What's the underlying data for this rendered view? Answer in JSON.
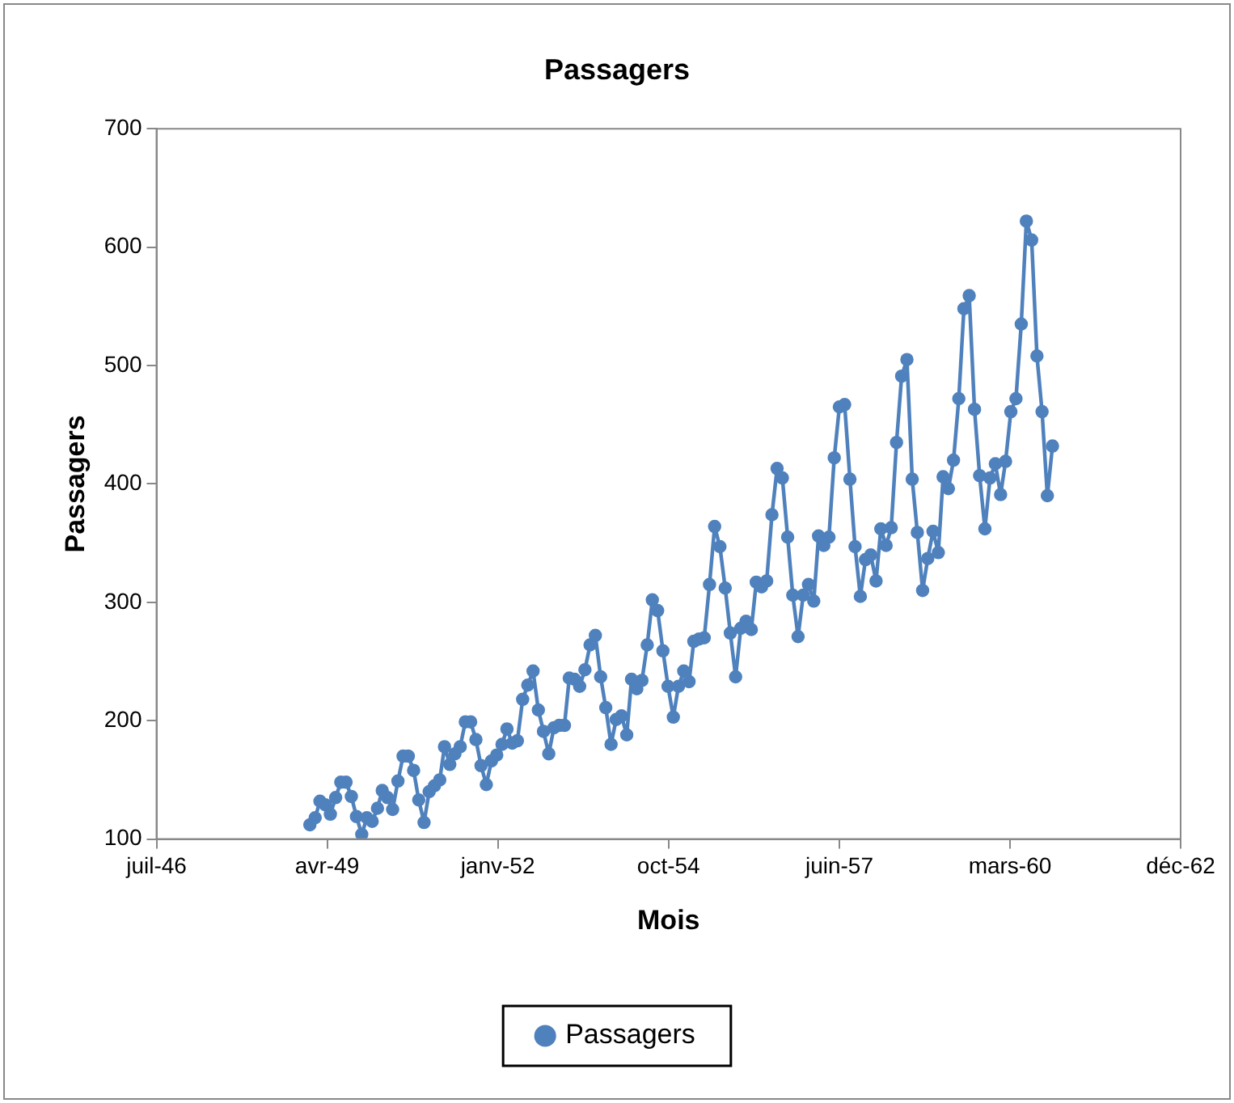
{
  "chart_data": {
    "type": "line",
    "title": "Passagers",
    "xlabel": "Mois",
    "ylabel": "Passagers",
    "x": [
      "1949-01",
      "1949-02",
      "1949-03",
      "1949-04",
      "1949-05",
      "1949-06",
      "1949-07",
      "1949-08",
      "1949-09",
      "1949-10",
      "1949-11",
      "1949-12",
      "1950-01",
      "1950-02",
      "1950-03",
      "1950-04",
      "1950-05",
      "1950-06",
      "1950-07",
      "1950-08",
      "1950-09",
      "1950-10",
      "1950-11",
      "1950-12",
      "1951-01",
      "1951-02",
      "1951-03",
      "1951-04",
      "1951-05",
      "1951-06",
      "1951-07",
      "1951-08",
      "1951-09",
      "1951-10",
      "1951-11",
      "1951-12",
      "1952-01",
      "1952-02",
      "1952-03",
      "1952-04",
      "1952-05",
      "1952-06",
      "1952-07",
      "1952-08",
      "1952-09",
      "1952-10",
      "1952-11",
      "1952-12",
      "1953-01",
      "1953-02",
      "1953-03",
      "1953-04",
      "1953-05",
      "1953-06",
      "1953-07",
      "1953-08",
      "1953-09",
      "1953-10",
      "1953-11",
      "1953-12",
      "1954-01",
      "1954-02",
      "1954-03",
      "1954-04",
      "1954-05",
      "1954-06",
      "1954-07",
      "1954-08",
      "1954-09",
      "1954-10",
      "1954-11",
      "1954-12",
      "1955-01",
      "1955-02",
      "1955-03",
      "1955-04",
      "1955-05",
      "1955-06",
      "1955-07",
      "1955-08",
      "1955-09",
      "1955-10",
      "1955-11",
      "1955-12",
      "1956-01",
      "1956-02",
      "1956-03",
      "1956-04",
      "1956-05",
      "1956-06",
      "1956-07",
      "1956-08",
      "1956-09",
      "1956-10",
      "1956-11",
      "1956-12",
      "1957-01",
      "1957-02",
      "1957-03",
      "1957-04",
      "1957-05",
      "1957-06",
      "1957-07",
      "1957-08",
      "1957-09",
      "1957-10",
      "1957-11",
      "1957-12",
      "1958-01",
      "1958-02",
      "1958-03",
      "1958-04",
      "1958-05",
      "1958-06",
      "1958-07",
      "1958-08",
      "1958-09",
      "1958-10",
      "1958-11",
      "1958-12",
      "1959-01",
      "1959-02",
      "1959-03",
      "1959-04",
      "1959-05",
      "1959-06",
      "1959-07",
      "1959-08",
      "1959-09",
      "1959-10",
      "1959-11",
      "1959-12",
      "1960-01",
      "1960-02",
      "1960-03",
      "1960-04",
      "1960-05",
      "1960-06",
      "1960-07",
      "1960-08",
      "1960-09",
      "1960-10",
      "1960-11",
      "1960-12"
    ],
    "series": [
      {
        "name": "Passagers",
        "color": "#4f81bd",
        "values": [
          112,
          118,
          132,
          129,
          121,
          135,
          148,
          148,
          136,
          119,
          104,
          118,
          115,
          126,
          141,
          135,
          125,
          149,
          170,
          170,
          158,
          133,
          114,
          140,
          145,
          150,
          178,
          163,
          172,
          178,
          199,
          199,
          184,
          162,
          146,
          166,
          171,
          180,
          193,
          181,
          183,
          218,
          230,
          242,
          209,
          191,
          172,
          194,
          196,
          196,
          236,
          235,
          229,
          243,
          264,
          272,
          237,
          211,
          180,
          201,
          204,
          188,
          235,
          227,
          234,
          264,
          302,
          293,
          259,
          229,
          203,
          229,
          242,
          233,
          267,
          269,
          270,
          315,
          364,
          347,
          312,
          274,
          237,
          278,
          284,
          277,
          317,
          313,
          318,
          374,
          413,
          405,
          355,
          306,
          271,
          306,
          315,
          301,
          356,
          348,
          355,
          422,
          465,
          467,
          404,
          347,
          305,
          336,
          340,
          318,
          362,
          348,
          363,
          435,
          491,
          505,
          404,
          359,
          310,
          337,
          360,
          342,
          406,
          396,
          420,
          472,
          548,
          559,
          463,
          407,
          362,
          405,
          417,
          391,
          419,
          461,
          472,
          535,
          622,
          606,
          508,
          461,
          390,
          432
        ]
      }
    ],
    "xlim": [
      "1946-07-17",
      "1962-12-22"
    ],
    "xticks": [
      {
        "value": "1946-07-17",
        "label": "juil-46"
      },
      {
        "value": "1949-04-12",
        "label": "avr-49"
      },
      {
        "value": "1952-01-07",
        "label": "janv-52"
      },
      {
        "value": "1954-10-04",
        "label": "oct-54"
      },
      {
        "value": "1957-07-01",
        "label": "juin-57"
      },
      {
        "value": "1960-03-27",
        "label": "mars-60"
      },
      {
        "value": "1962-12-22",
        "label": "déc-62"
      }
    ],
    "ylim": [
      100,
      700
    ],
    "yticks": [
      100,
      200,
      300,
      400,
      500,
      600,
      700
    ],
    "grid": false,
    "legend": "bottom",
    "marker": "circle",
    "line_style": "solid"
  }
}
